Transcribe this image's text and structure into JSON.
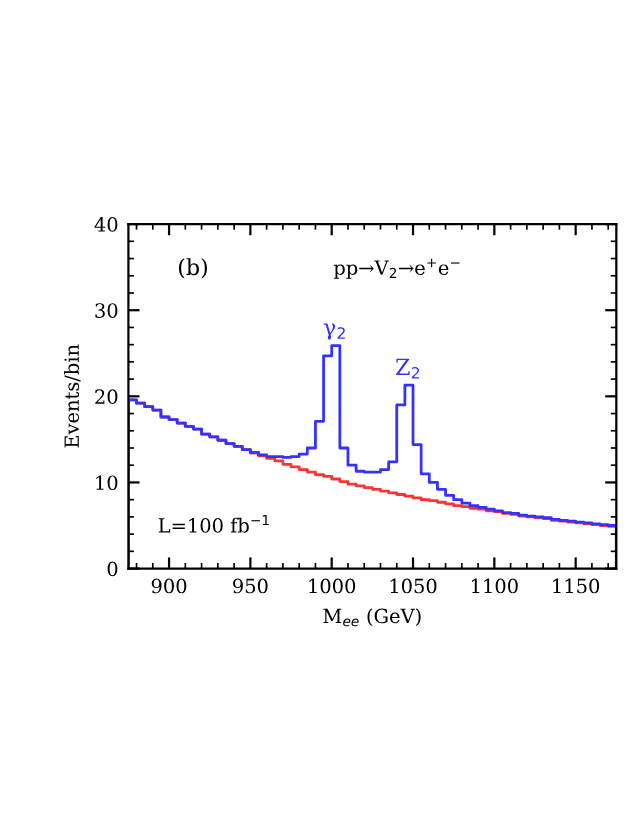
{
  "chart_data": {
    "type": "histogram",
    "xlabel": "M$_{ee}$ (GeV)",
    "ylabel": "Events/bin",
    "bins": [
      875,
      880,
      885,
      890,
      895,
      900,
      905,
      910,
      915,
      920,
      925,
      930,
      935,
      940,
      945,
      950,
      955,
      960,
      965,
      970,
      975,
      980,
      985,
      990,
      995,
      1000,
      1005,
      1010,
      1015,
      1020,
      1025,
      1030,
      1035,
      1040,
      1045,
      1050,
      1055,
      1060,
      1065,
      1070,
      1075,
      1080,
      1085,
      1090,
      1095,
      1100,
      1105,
      1110,
      1115,
      1120,
      1125,
      1130,
      1135,
      1140,
      1145,
      1150,
      1155,
      1160,
      1165,
      1170,
      1175
    ],
    "series": [
      {
        "color": "#ff3333",
        "values": [
          19.6,
          19.2,
          18.8,
          18.4,
          17.6,
          17.3,
          16.9,
          16.5,
          16.2,
          15.6,
          15.3,
          14.9,
          14.5,
          14.2,
          13.8,
          13.4,
          13.1,
          12.8,
          12.5,
          12.1,
          11.8,
          11.5,
          11.2,
          10.9,
          10.7,
          10.4,
          10.1,
          9.8,
          9.6,
          9.4,
          9.2,
          9.0,
          8.8,
          8.6,
          8.4,
          8.2,
          8.0,
          7.9,
          7.7,
          7.5,
          7.3,
          7.2,
          7.0,
          6.9,
          6.7,
          6.6,
          6.4,
          6.3,
          6.1,
          6.0,
          5.9,
          5.8,
          5.6,
          5.5,
          5.4,
          5.3,
          5.2,
          5.1,
          5.0,
          4.9
        ]
      },
      {
        "color": "#3333ff",
        "values": [
          19.6,
          19.2,
          18.8,
          18.4,
          17.6,
          17.3,
          16.9,
          16.5,
          16.2,
          15.6,
          15.3,
          14.9,
          14.5,
          14.2,
          13.8,
          13.5,
          13.2,
          13.0,
          13.0,
          12.9,
          13.0,
          13.3,
          14.0,
          17.1,
          24.7,
          25.9,
          14.0,
          12.0,
          11.3,
          11.2,
          11.2,
          11.5,
          12.4,
          19.0,
          21.3,
          14.4,
          11.0,
          10.0,
          9.2,
          8.5,
          8.0,
          7.6,
          7.3,
          7.1,
          6.9,
          6.7,
          6.5,
          6.4,
          6.2,
          6.1,
          6.0,
          5.9,
          5.7,
          5.6,
          5.5,
          5.4,
          5.3,
          5.2,
          5.1,
          5.0
        ]
      }
    ],
    "xlim": [
      875,
      1175
    ],
    "ylim": [
      0,
      40
    ],
    "xticks": [
      900,
      950,
      1000,
      1050,
      1100,
      1150
    ],
    "yticks": [
      0,
      10,
      20,
      30,
      40
    ],
    "grid": false,
    "legend": false,
    "annotations": [
      "(b)",
      "pp→V$_{2}$→e$^{+}$e$^{−}$",
      {
        "text": "γ$_{2}$",
        "x": 1002,
        "y": 25.9
      },
      {
        "text": "Z$_{2}$",
        "x": 1047,
        "y": 21.3
      },
      "L=100 fb$^{−1}$"
    ]
  }
}
